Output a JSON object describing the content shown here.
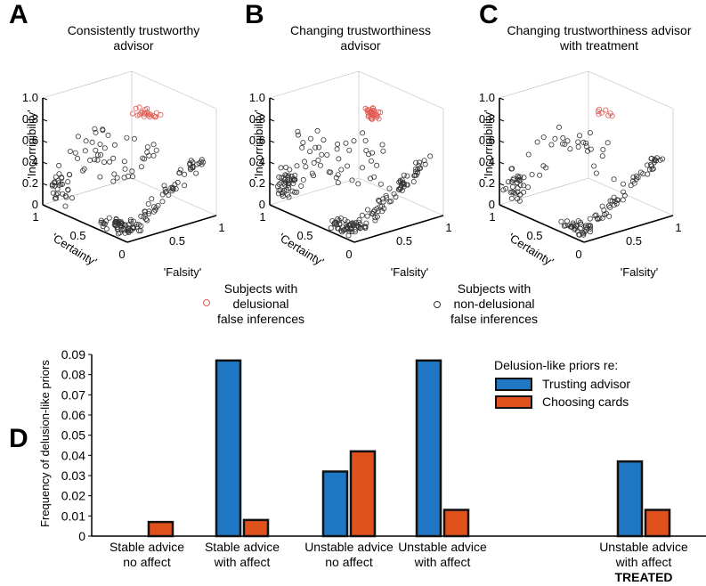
{
  "panels": [
    {
      "label": "A",
      "title": "Consistently trustworthy\nadvisor"
    },
    {
      "label": "B",
      "title": "Changing trustworthiness\nadvisor"
    },
    {
      "label": "C",
      "title": "Changing trustworthiness advisor\nwith treatment"
    }
  ],
  "axes3d": {
    "z_label": "'Incorrigibility'",
    "x_label": "'Certainty'",
    "y_label": "'Falsity'",
    "z_ticks": [
      "0",
      "0.2",
      "0.4",
      "0.6",
      "0.8",
      "1.0"
    ],
    "certainty_ticks": [
      "1",
      "0.5",
      "0"
    ],
    "falsity_ticks": [
      "0.5",
      "1"
    ]
  },
  "scatter_legend": {
    "delusional": "Subjects with\ndelusional\nfalse inferences",
    "nondelusional": "Subjects with\nnon-delusional\nfalse inferences"
  },
  "colors": {
    "delusional": "#e05a52",
    "nondelusional": "#333333",
    "trusting": "#1f77c4",
    "choosing": "#e0521c"
  },
  "panel_d_label": "D",
  "chart_data": {
    "type": "bar",
    "ylabel": "Frequency of delusion-like priors",
    "ylim": [
      0,
      0.09
    ],
    "yticks": [
      "0",
      "0.01",
      "0.02",
      "0.03",
      "0.04",
      "0.05",
      "0.06",
      "0.07",
      "0.08",
      "0.09"
    ],
    "legend_title": "Delusion-like priors re:",
    "categories": [
      "Stable advice\nno affect",
      "Stable advice\nwith affect",
      "Unstable advice\nno affect",
      "Unstable advice\nwith affect",
      "Unstable advice\nwith affect"
    ],
    "category_note": "TREATED",
    "series": [
      {
        "name": "Trusting advisor",
        "values": [
          0,
          0.087,
          0.032,
          0.087,
          0.037
        ]
      },
      {
        "name": "Choosing cards",
        "values": [
          0.007,
          0.008,
          0.042,
          0.013,
          0.013
        ]
      }
    ]
  }
}
